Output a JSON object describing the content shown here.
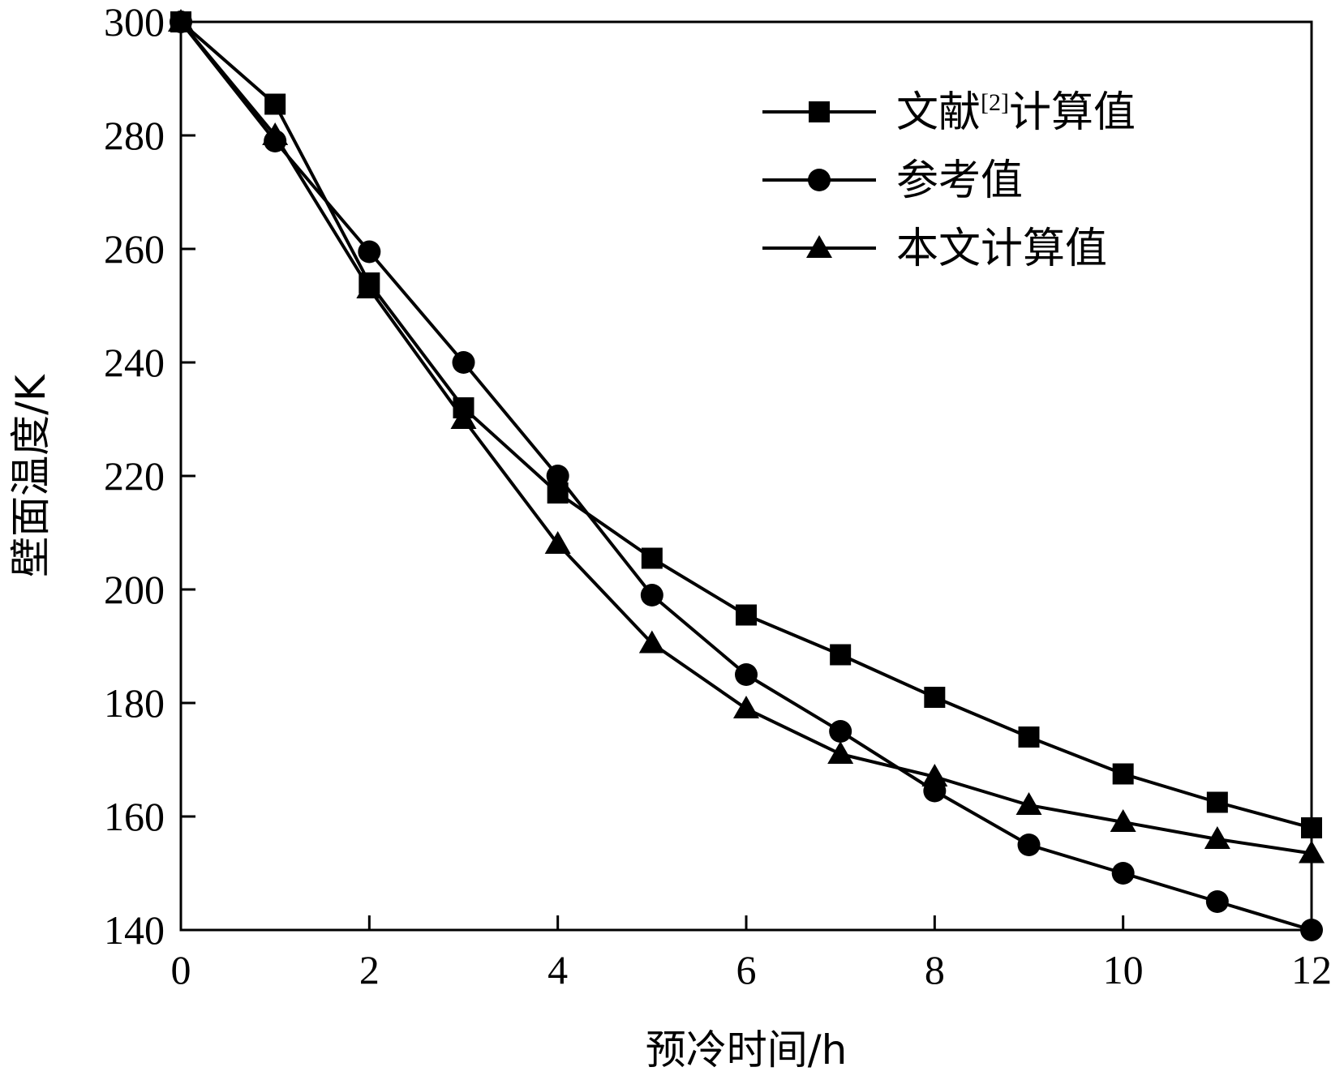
{
  "chart_data": {
    "type": "line",
    "xlabel": "预冷时间/h",
    "ylabel": "壁面温度/K",
    "xlim": [
      0,
      12
    ],
    "ylim": [
      140,
      300
    ],
    "xticks": [
      0,
      2,
      4,
      6,
      8,
      10,
      12
    ],
    "yticks": [
      140,
      160,
      180,
      200,
      220,
      240,
      260,
      280,
      300
    ],
    "grid": false,
    "legend_position": "top-right",
    "series": [
      {
        "name": "文献[2]计算值",
        "name_parts": {
          "before": "文献",
          "sup": "[2]",
          "after": "计算值"
        },
        "marker": "square",
        "color": "#000000",
        "x": [
          0,
          1,
          2,
          3,
          4,
          5,
          6,
          7,
          8,
          9,
          10,
          11,
          12
        ],
        "y": [
          300,
          285.5,
          254,
          232,
          217,
          205.5,
          195.5,
          188.5,
          181,
          174,
          167.5,
          162.5,
          158
        ]
      },
      {
        "name": "参考值",
        "marker": "circle",
        "color": "#000000",
        "x": [
          0,
          1,
          2,
          3,
          4,
          5,
          6,
          7,
          8,
          9,
          10,
          11,
          12
        ],
        "y": [
          300,
          279,
          259.5,
          240,
          220,
          199,
          185,
          175,
          164.5,
          155,
          150,
          145,
          140
        ]
      },
      {
        "name": "本文计算值",
        "marker": "triangle",
        "color": "#000000",
        "x": [
          0,
          1,
          2,
          3,
          4,
          5,
          6,
          7,
          8,
          9,
          10,
          11,
          12
        ],
        "y": [
          300,
          280,
          253,
          230,
          208,
          190.5,
          179,
          171,
          167,
          162,
          159,
          156,
          153.5
        ]
      }
    ]
  }
}
